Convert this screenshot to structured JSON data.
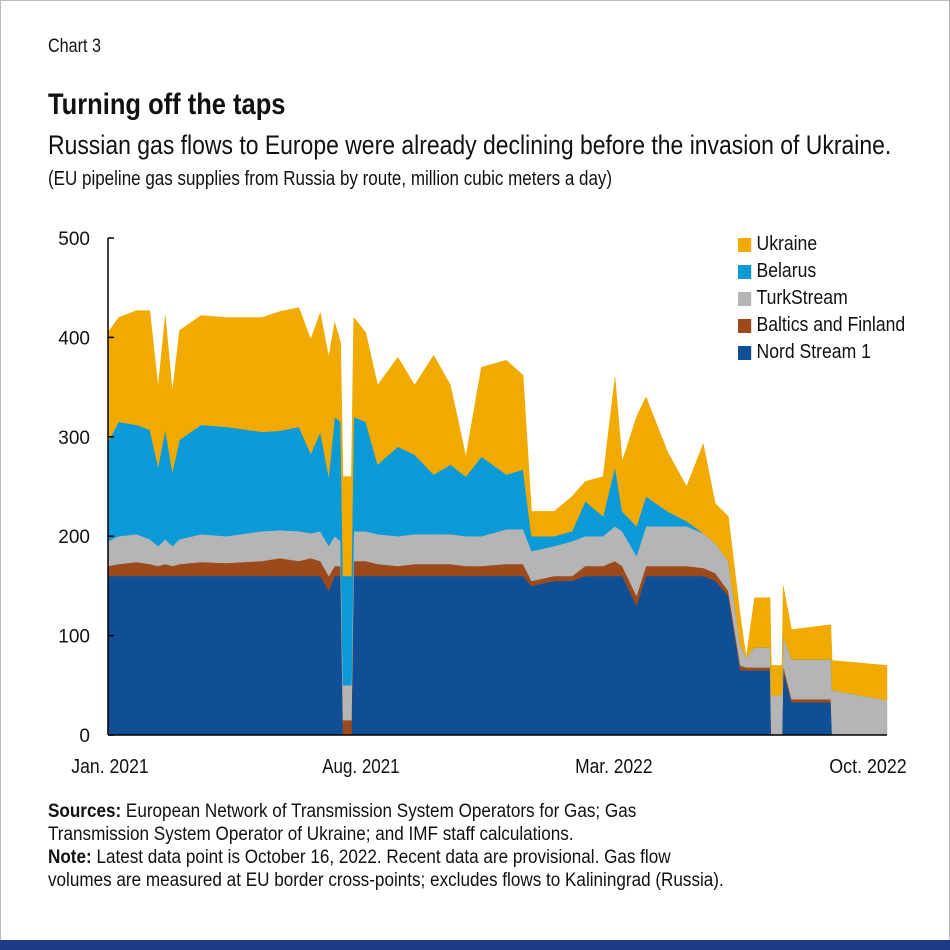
{
  "header": {
    "chart_number": "Chart 3",
    "title": "Turning off the taps",
    "subtitle": "Russian gas flows to Europe were already declining before the invasion of Ukraine.",
    "units": "(EU pipeline gas supplies from Russia by route, million cubic meters a day)"
  },
  "notes": {
    "sources_label": "Sources:",
    "sources_text": " European Network of Transmission System Operators for Gas; Gas",
    "sources_text2": "Transmission System Operator of Ukraine; and IMF staff calculations.",
    "note_label": "Note:",
    "note_text": " Latest data point is October 16, 2022. Recent data are provisional. Gas flow",
    "note_text2": "volumes are measured at EU border cross-points; excludes flows to Kaliningrad (Russia)."
  },
  "chart_data": {
    "type": "area",
    "stacked": true,
    "title": "Turning off the taps",
    "ylim": [
      0,
      500
    ],
    "yticks": [
      0,
      100,
      200,
      300,
      400,
      500
    ],
    "xlim": [
      "2021-01-01",
      "2022-10-16"
    ],
    "xticks": [
      {
        "date": "2021-01-01",
        "label": "Jan. 2021"
      },
      {
        "date": "2021-08-01",
        "label": "Aug. 2021"
      },
      {
        "date": "2022-03-01",
        "label": "Mar. 2022"
      },
      {
        "date": "2022-10-01",
        "label": "Oct. 2022"
      }
    ],
    "grid": false,
    "legend_position": "top-right",
    "legend_order": [
      "Ukraine",
      "Belarus",
      "TurkStream",
      "Baltics and Finland",
      "Nord Stream 1"
    ],
    "x": [
      "2021-01-01",
      "2021-01-10",
      "2021-01-25",
      "2021-02-05",
      "2021-02-12",
      "2021-02-18",
      "2021-02-24",
      "2021-03-02",
      "2021-03-20",
      "2021-04-10",
      "2021-05-10",
      "2021-05-25",
      "2021-06-10",
      "2021-06-20",
      "2021-06-28",
      "2021-07-05",
      "2021-07-10",
      "2021-07-15",
      "2021-07-17",
      "2021-07-24",
      "2021-07-26",
      "2021-08-05",
      "2021-08-15",
      "2021-09-01",
      "2021-09-15",
      "2021-10-01",
      "2021-10-15",
      "2021-10-28",
      "2021-11-10",
      "2021-12-01",
      "2021-12-15",
      "2021-12-22",
      "2022-01-10",
      "2022-01-25",
      "2022-02-05",
      "2022-02-20",
      "2022-03-02",
      "2022-03-08",
      "2022-03-20",
      "2022-03-28",
      "2022-04-15",
      "2022-05-01",
      "2022-05-15",
      "2022-05-25",
      "2022-06-05",
      "2022-06-15",
      "2022-06-20",
      "2022-06-27",
      "2022-07-10",
      "2022-07-11",
      "2022-07-20",
      "2022-07-21",
      "2022-07-28",
      "2022-08-30",
      "2022-08-31",
      "2022-10-16"
    ],
    "series": [
      {
        "name": "Nord Stream 1",
        "color": "#0e4f96",
        "values": [
          160,
          160,
          160,
          160,
          160,
          160,
          160,
          160,
          160,
          160,
          160,
          160,
          160,
          160,
          160,
          145,
          160,
          160,
          0,
          0,
          160,
          160,
          160,
          160,
          160,
          160,
          160,
          160,
          160,
          160,
          160,
          150,
          155,
          155,
          160,
          160,
          160,
          160,
          130,
          160,
          160,
          160,
          160,
          155,
          140,
          65,
          65,
          65,
          65,
          0,
          0,
          65,
          33,
          33,
          0,
          0
        ]
      },
      {
        "name": "Baltics and Finland",
        "color": "#9c4a1c",
        "values": [
          10,
          12,
          14,
          12,
          10,
          12,
          10,
          12,
          14,
          13,
          15,
          18,
          15,
          18,
          15,
          15,
          10,
          10,
          15,
          15,
          15,
          15,
          12,
          10,
          12,
          12,
          12,
          10,
          10,
          12,
          12,
          5,
          5,
          5,
          10,
          10,
          15,
          10,
          10,
          10,
          10,
          10,
          8,
          8,
          5,
          5,
          3,
          3,
          3,
          0,
          0,
          5,
          3,
          3,
          0,
          0
        ]
      },
      {
        "name": "TurkStream",
        "color": "#b5b5b5",
        "values": [
          25,
          28,
          28,
          25,
          20,
          25,
          20,
          25,
          28,
          27,
          30,
          28,
          30,
          25,
          30,
          30,
          30,
          25,
          35,
          35,
          30,
          30,
          30,
          30,
          30,
          30,
          30,
          30,
          30,
          35,
          35,
          30,
          30,
          35,
          30,
          30,
          35,
          35,
          40,
          40,
          40,
          40,
          35,
          30,
          30,
          20,
          10,
          20,
          20,
          40,
          40,
          30,
          40,
          40,
          45,
          35
        ]
      },
      {
        "name": "Belarus",
        "color": "#0a9ad8",
        "values": [
          100,
          115,
          110,
          110,
          80,
          110,
          75,
          100,
          110,
          110,
          100,
          100,
          105,
          80,
          100,
          70,
          120,
          120,
          110,
          110,
          115,
          110,
          70,
          90,
          80,
          60,
          70,
          60,
          80,
          55,
          60,
          15,
          10,
          10,
          35,
          20,
          60,
          20,
          30,
          30,
          15,
          5,
          0,
          0,
          0,
          0,
          0,
          0,
          0,
          0,
          0,
          0,
          0,
          0,
          0,
          0
        ]
      },
      {
        "name": "Ukraine",
        "color": "#f0aa00",
        "values": [
          110,
          105,
          115,
          120,
          80,
          115,
          80,
          110,
          110,
          110,
          115,
          120,
          120,
          115,
          120,
          120,
          95,
          80,
          100,
          100,
          100,
          90,
          80,
          90,
          70,
          120,
          80,
          20,
          90,
          115,
          95,
          25,
          25,
          35,
          20,
          40,
          90,
          50,
          110,
          100,
          60,
          35,
          90,
          40,
          45,
          30,
          0,
          50,
          50,
          30,
          30,
          50,
          30,
          35,
          30,
          35
        ]
      }
    ]
  }
}
